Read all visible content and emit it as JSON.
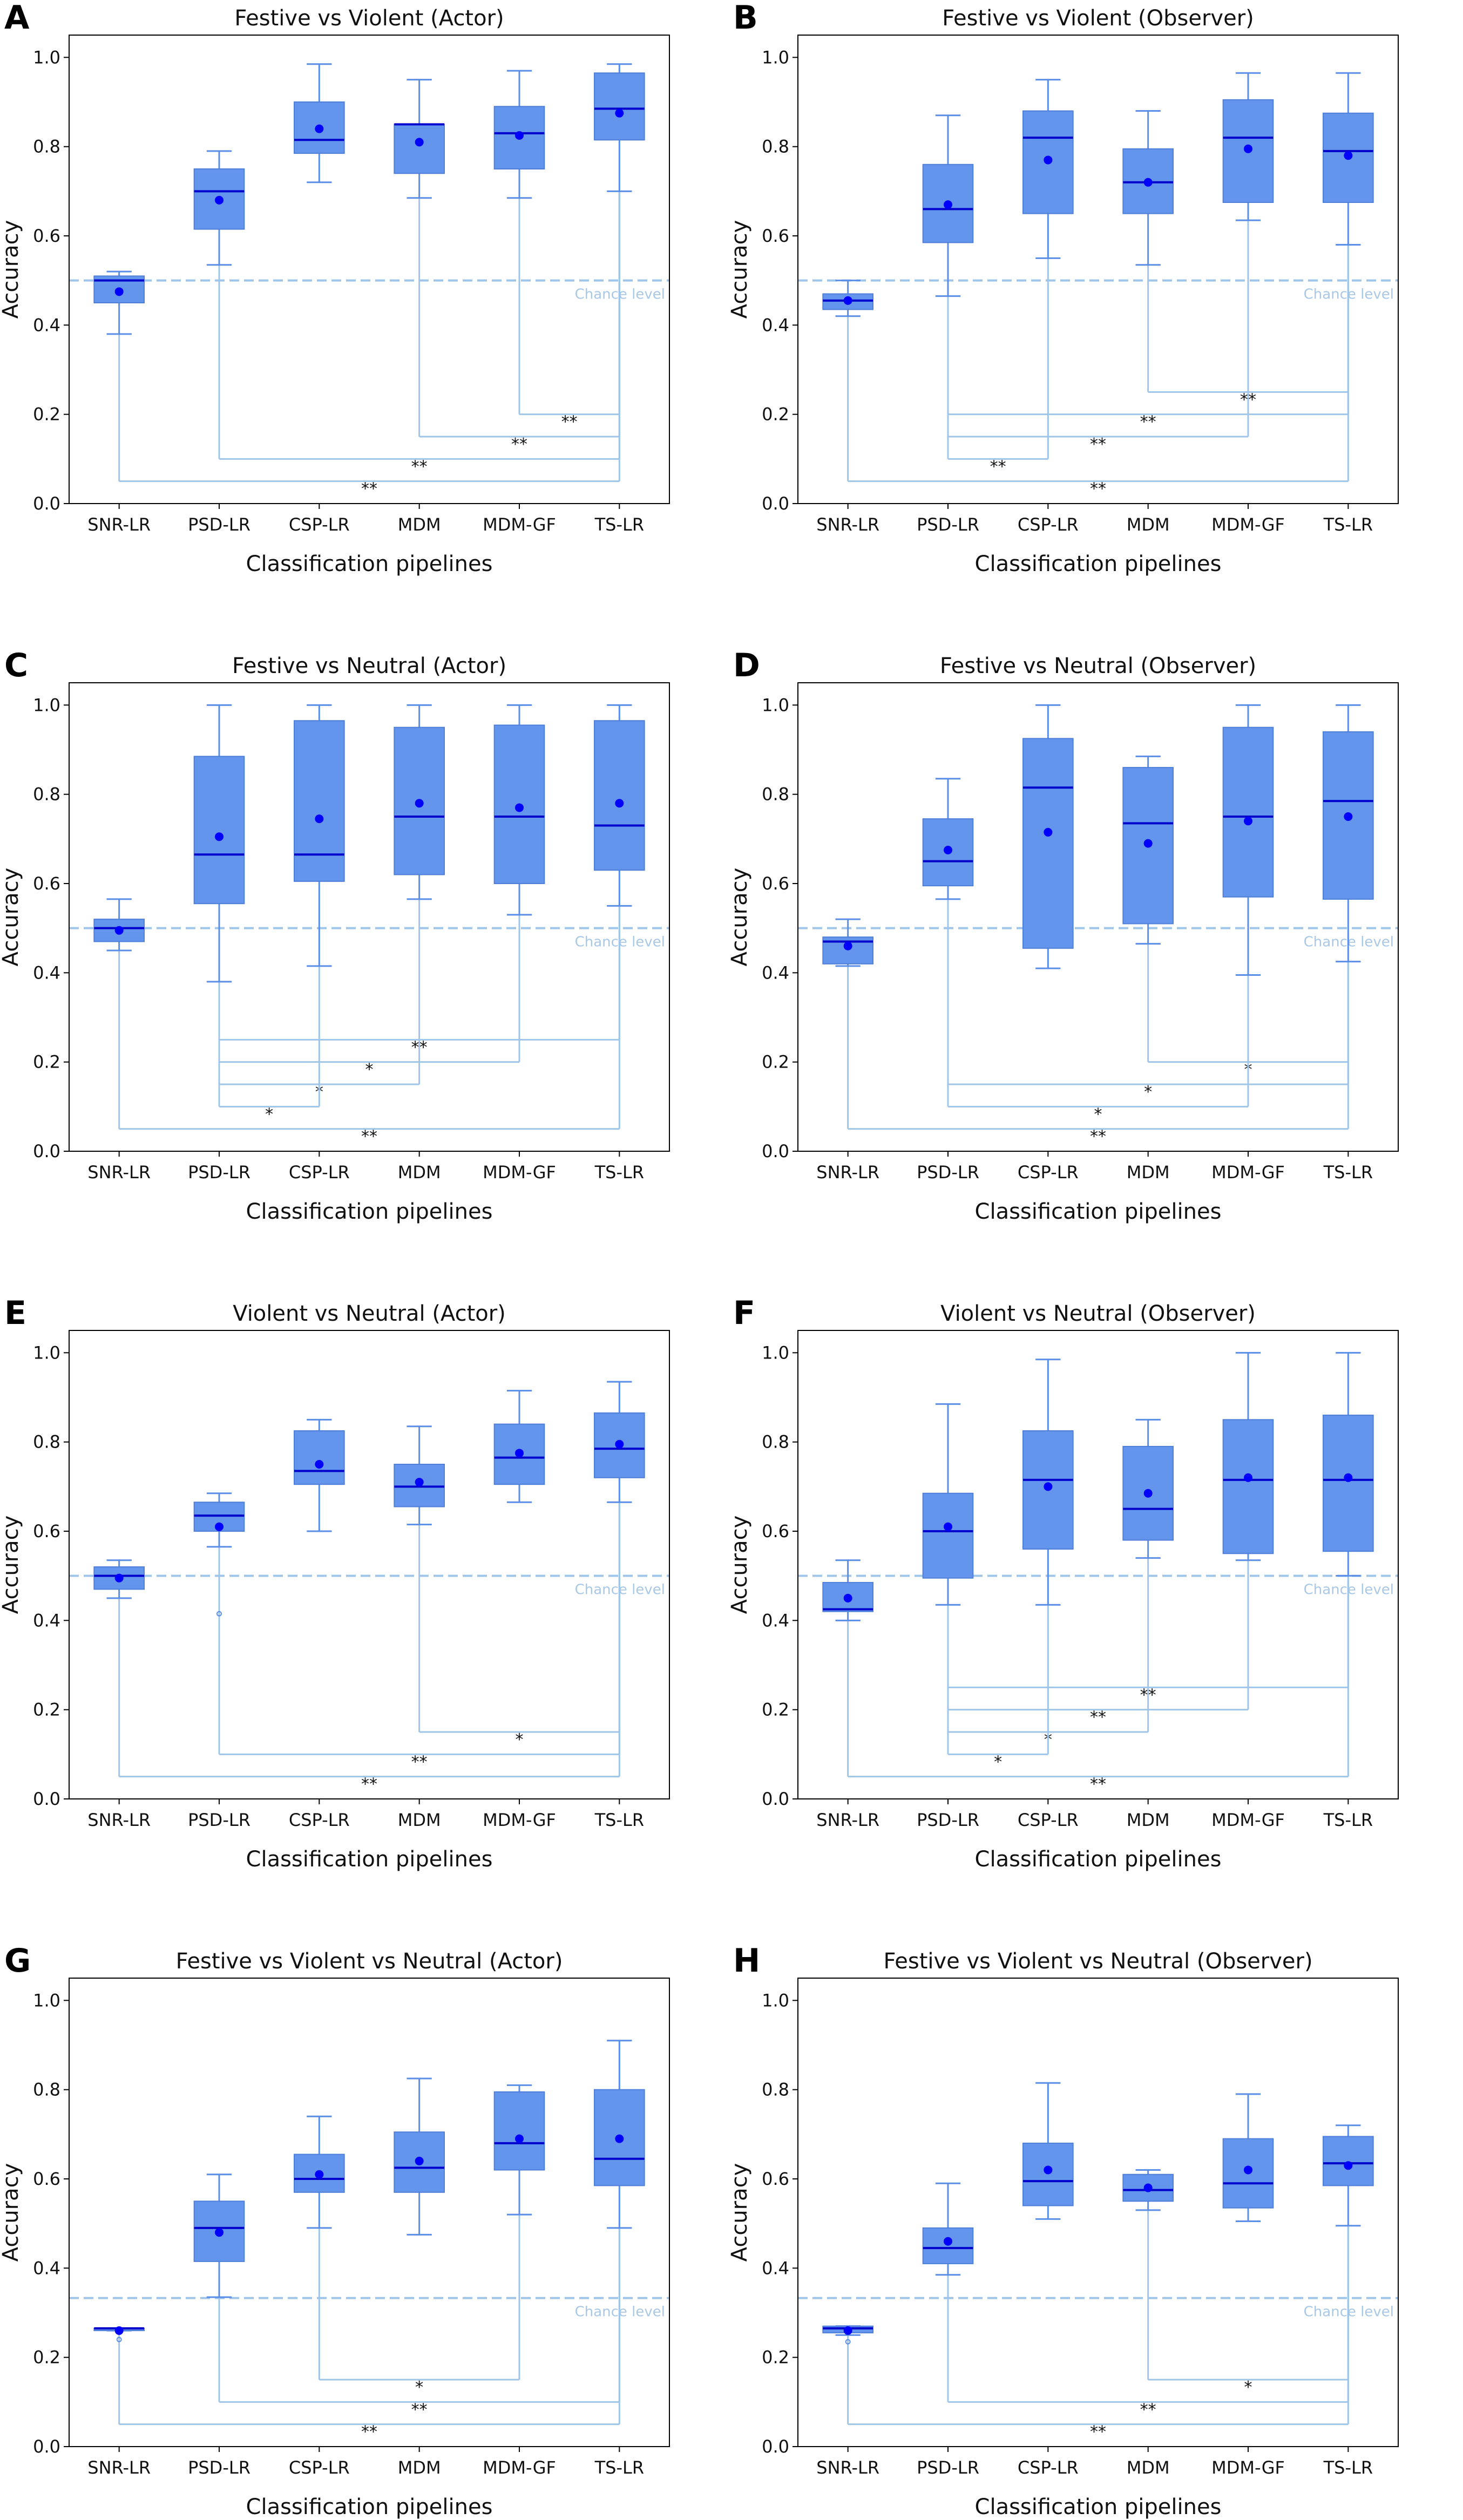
{
  "colors": {
    "box_fill": "#6495ed",
    "box_edge": "#4f7fd8",
    "whisker": "#5b8ee6",
    "median": "#0000cd",
    "mean": "#0000ff",
    "chance_line": "#9fc5e8",
    "bracket": "#9fc5e8"
  },
  "chart_data": [
    {
      "panel": "A",
      "type": "box",
      "title": "Festive vs Violent  (Actor)",
      "xlabel": "Classification pipelines",
      "ylabel": "Accuracy",
      "ylim": [
        0,
        1.05
      ],
      "yticks": [
        "0.0",
        "0.2",
        "0.4",
        "0.6",
        "0.8",
        "1.0"
      ],
      "categories": [
        "SNR-LR",
        "PSD-LR",
        "CSP-LR",
        "MDM",
        "MDM-GF",
        "TS-LR"
      ],
      "boxes": [
        {
          "whislo": 0.38,
          "q1": 0.45,
          "med": 0.5,
          "q3": 0.51,
          "whishi": 0.52,
          "mean": 0.475
        },
        {
          "whislo": 0.535,
          "q1": 0.615,
          "med": 0.7,
          "q3": 0.75,
          "whishi": 0.79,
          "mean": 0.68
        },
        {
          "whislo": 0.72,
          "q1": 0.785,
          "med": 0.815,
          "q3": 0.9,
          "whishi": 0.985,
          "mean": 0.84
        },
        {
          "whislo": 0.685,
          "q1": 0.74,
          "med": 0.85,
          "q3": 0.85,
          "whishi": 0.95,
          "mean": 0.81
        },
        {
          "whislo": 0.685,
          "q1": 0.75,
          "med": 0.83,
          "q3": 0.89,
          "whishi": 0.97,
          "mean": 0.825
        },
        {
          "whislo": 0.7,
          "q1": 0.815,
          "med": 0.885,
          "q3": 0.965,
          "whishi": 0.985,
          "mean": 0.875
        }
      ],
      "chance_level": 0.5,
      "chance_label": "Chance level",
      "significance": [
        {
          "from": "MDM-GF",
          "to": "TS-LR",
          "y": 0.2,
          "label": "**"
        },
        {
          "from": "MDM",
          "to": "TS-LR",
          "y": 0.15,
          "label": "**"
        },
        {
          "from": "PSD-LR",
          "to": "TS-LR",
          "y": 0.1,
          "label": "**"
        },
        {
          "from": "SNR-LR",
          "to": "TS-LR",
          "y": 0.05,
          "label": "**"
        }
      ]
    },
    {
      "panel": "B",
      "type": "box",
      "title": "Festive vs Violent  (Observer)",
      "xlabel": "Classification pipelines",
      "ylabel": "Accuracy",
      "ylim": [
        0,
        1.05
      ],
      "yticks": [
        "0.0",
        "0.2",
        "0.4",
        "0.6",
        "0.8",
        "1.0"
      ],
      "categories": [
        "SNR-LR",
        "PSD-LR",
        "CSP-LR",
        "MDM",
        "MDM-GF",
        "TS-LR"
      ],
      "boxes": [
        {
          "whislo": 0.42,
          "q1": 0.435,
          "med": 0.455,
          "q3": 0.47,
          "whishi": 0.5,
          "mean": 0.455
        },
        {
          "whislo": 0.465,
          "q1": 0.585,
          "med": 0.66,
          "q3": 0.76,
          "whishi": 0.87,
          "mean": 0.67
        },
        {
          "whislo": 0.55,
          "q1": 0.65,
          "med": 0.82,
          "q3": 0.88,
          "whishi": 0.95,
          "mean": 0.77
        },
        {
          "whislo": 0.535,
          "q1": 0.65,
          "med": 0.72,
          "q3": 0.795,
          "whishi": 0.88,
          "mean": 0.72
        },
        {
          "whislo": 0.635,
          "q1": 0.675,
          "med": 0.82,
          "q3": 0.905,
          "whishi": 0.965,
          "mean": 0.795
        },
        {
          "whislo": 0.58,
          "q1": 0.675,
          "med": 0.79,
          "q3": 0.875,
          "whishi": 0.965,
          "mean": 0.78
        }
      ],
      "chance_level": 0.5,
      "chance_label": "Chance level",
      "significance": [
        {
          "from": "MDM",
          "to": "TS-LR",
          "y": 0.25,
          "label": "**"
        },
        {
          "from": "PSD-LR",
          "to": "TS-LR",
          "y": 0.2,
          "label": "**"
        },
        {
          "from": "PSD-LR",
          "to": "MDM-GF",
          "y": 0.15,
          "label": "**"
        },
        {
          "from": "PSD-LR",
          "to": "CSP-LR",
          "y": 0.1,
          "label": "**"
        },
        {
          "from": "SNR-LR",
          "to": "TS-LR",
          "y": 0.05,
          "label": "**"
        }
      ]
    },
    {
      "panel": "C",
      "type": "box",
      "title": "Festive vs Neutral  (Actor)",
      "xlabel": "Classification pipelines",
      "ylabel": "Accuracy",
      "ylim": [
        0,
        1.05
      ],
      "yticks": [
        "0.0",
        "0.2",
        "0.4",
        "0.6",
        "0.8",
        "1.0"
      ],
      "categories": [
        "SNR-LR",
        "PSD-LR",
        "CSP-LR",
        "MDM",
        "MDM-GF",
        "TS-LR"
      ],
      "boxes": [
        {
          "whislo": 0.45,
          "q1": 0.47,
          "med": 0.5,
          "q3": 0.52,
          "whishi": 0.565,
          "mean": 0.495
        },
        {
          "whislo": 0.38,
          "q1": 0.555,
          "med": 0.665,
          "q3": 0.885,
          "whishi": 1.0,
          "mean": 0.705
        },
        {
          "whislo": 0.415,
          "q1": 0.605,
          "med": 0.665,
          "q3": 0.965,
          "whishi": 1.0,
          "mean": 0.745
        },
        {
          "whislo": 0.565,
          "q1": 0.62,
          "med": 0.75,
          "q3": 0.95,
          "whishi": 1.0,
          "mean": 0.78
        },
        {
          "whislo": 0.53,
          "q1": 0.6,
          "med": 0.75,
          "q3": 0.955,
          "whishi": 1.0,
          "mean": 0.77
        },
        {
          "whislo": 0.55,
          "q1": 0.63,
          "med": 0.73,
          "q3": 0.965,
          "whishi": 1.0,
          "mean": 0.78
        }
      ],
      "chance_level": 0.5,
      "chance_label": "Chance level",
      "significance": [
        {
          "from": "PSD-LR",
          "to": "TS-LR",
          "y": 0.25,
          "label": "**"
        },
        {
          "from": "PSD-LR",
          "to": "MDM-GF",
          "y": 0.2,
          "label": "*"
        },
        {
          "from": "PSD-LR",
          "to": "MDM",
          "y": 0.15,
          "label": "*"
        },
        {
          "from": "PSD-LR",
          "to": "CSP-LR",
          "y": 0.1,
          "label": "*"
        },
        {
          "from": "SNR-LR",
          "to": "TS-LR",
          "y": 0.05,
          "label": "**"
        }
      ]
    },
    {
      "panel": "D",
      "type": "box",
      "title": "Festive vs Neutral  (Observer)",
      "xlabel": "Classification pipelines",
      "ylabel": "Accuracy",
      "ylim": [
        0,
        1.05
      ],
      "yticks": [
        "0.0",
        "0.2",
        "0.4",
        "0.6",
        "0.8",
        "1.0"
      ],
      "categories": [
        "SNR-LR",
        "PSD-LR",
        "CSP-LR",
        "MDM",
        "MDM-GF",
        "TS-LR"
      ],
      "boxes": [
        {
          "whislo": 0.415,
          "q1": 0.42,
          "med": 0.47,
          "q3": 0.48,
          "whishi": 0.52,
          "mean": 0.46
        },
        {
          "whislo": 0.565,
          "q1": 0.595,
          "med": 0.65,
          "q3": 0.745,
          "whishi": 0.835,
          "mean": 0.675
        },
        {
          "whislo": 0.41,
          "q1": 0.455,
          "med": 0.815,
          "q3": 0.925,
          "whishi": 1.0,
          "mean": 0.715
        },
        {
          "whislo": 0.465,
          "q1": 0.51,
          "med": 0.735,
          "q3": 0.86,
          "whishi": 0.885,
          "mean": 0.69
        },
        {
          "whislo": 0.395,
          "q1": 0.57,
          "med": 0.75,
          "q3": 0.95,
          "whishi": 1.0,
          "mean": 0.74
        },
        {
          "whislo": 0.425,
          "q1": 0.565,
          "med": 0.785,
          "q3": 0.94,
          "whishi": 1.0,
          "mean": 0.75
        }
      ],
      "chance_level": 0.5,
      "chance_label": "Chance level",
      "significance": [
        {
          "from": "MDM",
          "to": "TS-LR",
          "y": 0.2,
          "label": "*"
        },
        {
          "from": "PSD-LR",
          "to": "TS-LR",
          "y": 0.15,
          "label": "*"
        },
        {
          "from": "PSD-LR",
          "to": "MDM-GF",
          "y": 0.1,
          "label": "*"
        },
        {
          "from": "SNR-LR",
          "to": "TS-LR",
          "y": 0.05,
          "label": "**"
        }
      ]
    },
    {
      "panel": "E",
      "type": "box",
      "title": "Violent vs Neutral  (Actor)",
      "xlabel": "Classification pipelines",
      "ylabel": "Accuracy",
      "ylim": [
        0,
        1.05
      ],
      "yticks": [
        "0.0",
        "0.2",
        "0.4",
        "0.6",
        "0.8",
        "1.0"
      ],
      "categories": [
        "SNR-LR",
        "PSD-LR",
        "CSP-LR",
        "MDM",
        "MDM-GF",
        "TS-LR"
      ],
      "boxes": [
        {
          "whislo": 0.45,
          "q1": 0.47,
          "med": 0.5,
          "q3": 0.52,
          "whishi": 0.535,
          "mean": 0.495
        },
        {
          "whislo": 0.565,
          "q1": 0.6,
          "med": 0.635,
          "q3": 0.665,
          "whishi": 0.685,
          "mean": 0.61,
          "outliers": [
            0.415
          ]
        },
        {
          "whislo": 0.6,
          "q1": 0.705,
          "med": 0.735,
          "q3": 0.825,
          "whishi": 0.85,
          "mean": 0.75
        },
        {
          "whislo": 0.615,
          "q1": 0.655,
          "med": 0.7,
          "q3": 0.75,
          "whishi": 0.835,
          "mean": 0.71
        },
        {
          "whislo": 0.665,
          "q1": 0.705,
          "med": 0.765,
          "q3": 0.84,
          "whishi": 0.915,
          "mean": 0.775
        },
        {
          "whislo": 0.665,
          "q1": 0.72,
          "med": 0.785,
          "q3": 0.865,
          "whishi": 0.935,
          "mean": 0.795
        }
      ],
      "chance_level": 0.5,
      "chance_label": "Chance level",
      "significance": [
        {
          "from": "MDM",
          "to": "TS-LR",
          "y": 0.15,
          "label": "*"
        },
        {
          "from": "PSD-LR",
          "to": "TS-LR",
          "y": 0.1,
          "label": "**"
        },
        {
          "from": "SNR-LR",
          "to": "TS-LR",
          "y": 0.05,
          "label": "**"
        }
      ]
    },
    {
      "panel": "F",
      "type": "box",
      "title": "Violent vs Neutral  (Observer)",
      "xlabel": "Classification pipelines",
      "ylabel": "Accuracy",
      "ylim": [
        0,
        1.05
      ],
      "yticks": [
        "0.0",
        "0.2",
        "0.4",
        "0.6",
        "0.8",
        "1.0"
      ],
      "categories": [
        "SNR-LR",
        "PSD-LR",
        "CSP-LR",
        "MDM",
        "MDM-GF",
        "TS-LR"
      ],
      "boxes": [
        {
          "whislo": 0.4,
          "q1": 0.42,
          "med": 0.425,
          "q3": 0.485,
          "whishi": 0.535,
          "mean": 0.45
        },
        {
          "whislo": 0.435,
          "q1": 0.495,
          "med": 0.6,
          "q3": 0.685,
          "whishi": 0.885,
          "mean": 0.61
        },
        {
          "whislo": 0.435,
          "q1": 0.56,
          "med": 0.715,
          "q3": 0.825,
          "whishi": 0.985,
          "mean": 0.7
        },
        {
          "whislo": 0.54,
          "q1": 0.58,
          "med": 0.65,
          "q3": 0.79,
          "whishi": 0.85,
          "mean": 0.685
        },
        {
          "whislo": 0.535,
          "q1": 0.55,
          "med": 0.715,
          "q3": 0.85,
          "whishi": 1.0,
          "mean": 0.72
        },
        {
          "whislo": 0.5,
          "q1": 0.555,
          "med": 0.715,
          "q3": 0.86,
          "whishi": 1.0,
          "mean": 0.72
        }
      ],
      "chance_level": 0.5,
      "chance_label": "Chance level",
      "significance": [
        {
          "from": "PSD-LR",
          "to": "TS-LR",
          "y": 0.25,
          "label": "**"
        },
        {
          "from": "PSD-LR",
          "to": "MDM-GF",
          "y": 0.2,
          "label": "**"
        },
        {
          "from": "PSD-LR",
          "to": "MDM",
          "y": 0.15,
          "label": "*"
        },
        {
          "from": "PSD-LR",
          "to": "CSP-LR",
          "y": 0.1,
          "label": "*"
        },
        {
          "from": "SNR-LR",
          "to": "TS-LR",
          "y": 0.05,
          "label": "**"
        }
      ]
    },
    {
      "panel": "G",
      "type": "box",
      "title": "Festive vs Violent vs Neutral  (Actor)",
      "xlabel": "Classification pipelines",
      "ylabel": "Accuracy",
      "ylim": [
        0,
        1.05
      ],
      "yticks": [
        "0.0",
        "0.2",
        "0.4",
        "0.6",
        "0.8",
        "1.0"
      ],
      "categories": [
        "SNR-LR",
        "PSD-LR",
        "CSP-LR",
        "MDM",
        "MDM-GF",
        "TS-LR"
      ],
      "boxes": [
        {
          "whislo": 0.26,
          "q1": 0.26,
          "med": 0.265,
          "q3": 0.265,
          "whishi": 0.265,
          "mean": 0.26,
          "outliers": [
            0.24
          ]
        },
        {
          "whislo": 0.335,
          "q1": 0.415,
          "med": 0.49,
          "q3": 0.55,
          "whishi": 0.61,
          "mean": 0.48
        },
        {
          "whislo": 0.49,
          "q1": 0.57,
          "med": 0.6,
          "q3": 0.655,
          "whishi": 0.74,
          "mean": 0.61
        },
        {
          "whislo": 0.475,
          "q1": 0.57,
          "med": 0.625,
          "q3": 0.705,
          "whishi": 0.825,
          "mean": 0.64
        },
        {
          "whislo": 0.52,
          "q1": 0.62,
          "med": 0.68,
          "q3": 0.795,
          "whishi": 0.81,
          "mean": 0.69
        },
        {
          "whislo": 0.49,
          "q1": 0.585,
          "med": 0.645,
          "q3": 0.8,
          "whishi": 0.91,
          "mean": 0.69
        }
      ],
      "chance_level": 0.333,
      "chance_label": "Chance level",
      "significance": [
        {
          "from": "CSP-LR",
          "to": "MDM-GF",
          "y": 0.15,
          "label": "*"
        },
        {
          "from": "PSD-LR",
          "to": "TS-LR",
          "y": 0.1,
          "label": "**"
        },
        {
          "from": "SNR-LR",
          "to": "TS-LR",
          "y": 0.05,
          "label": "**"
        }
      ]
    },
    {
      "panel": "H",
      "type": "box",
      "title": "Festive vs Violent vs Neutral  (Observer)",
      "xlabel": "Classification pipelines",
      "ylabel": "Accuracy",
      "ylim": [
        0,
        1.05
      ],
      "yticks": [
        "0.0",
        "0.2",
        "0.4",
        "0.6",
        "0.8",
        "1.0"
      ],
      "categories": [
        "SNR-LR",
        "PSD-LR",
        "CSP-LR",
        "MDM",
        "MDM-GF",
        "TS-LR"
      ],
      "boxes": [
        {
          "whislo": 0.25,
          "q1": 0.255,
          "med": 0.265,
          "q3": 0.27,
          "whishi": 0.27,
          "mean": 0.26,
          "outliers": [
            0.235
          ]
        },
        {
          "whislo": 0.385,
          "q1": 0.41,
          "med": 0.445,
          "q3": 0.49,
          "whishi": 0.59,
          "mean": 0.46
        },
        {
          "whislo": 0.51,
          "q1": 0.54,
          "med": 0.595,
          "q3": 0.68,
          "whishi": 0.815,
          "mean": 0.62
        },
        {
          "whislo": 0.53,
          "q1": 0.55,
          "med": 0.575,
          "q3": 0.61,
          "whishi": 0.62,
          "mean": 0.58
        },
        {
          "whislo": 0.505,
          "q1": 0.535,
          "med": 0.59,
          "q3": 0.69,
          "whishi": 0.79,
          "mean": 0.62
        },
        {
          "whislo": 0.495,
          "q1": 0.585,
          "med": 0.635,
          "q3": 0.695,
          "whishi": 0.72,
          "mean": 0.63
        }
      ],
      "chance_level": 0.333,
      "chance_label": "Chance level",
      "significance": [
        {
          "from": "MDM",
          "to": "TS-LR",
          "y": 0.15,
          "label": "*"
        },
        {
          "from": "PSD-LR",
          "to": "TS-LR",
          "y": 0.1,
          "label": "**"
        },
        {
          "from": "SNR-LR",
          "to": "TS-LR",
          "y": 0.05,
          "label": "**"
        }
      ]
    }
  ]
}
